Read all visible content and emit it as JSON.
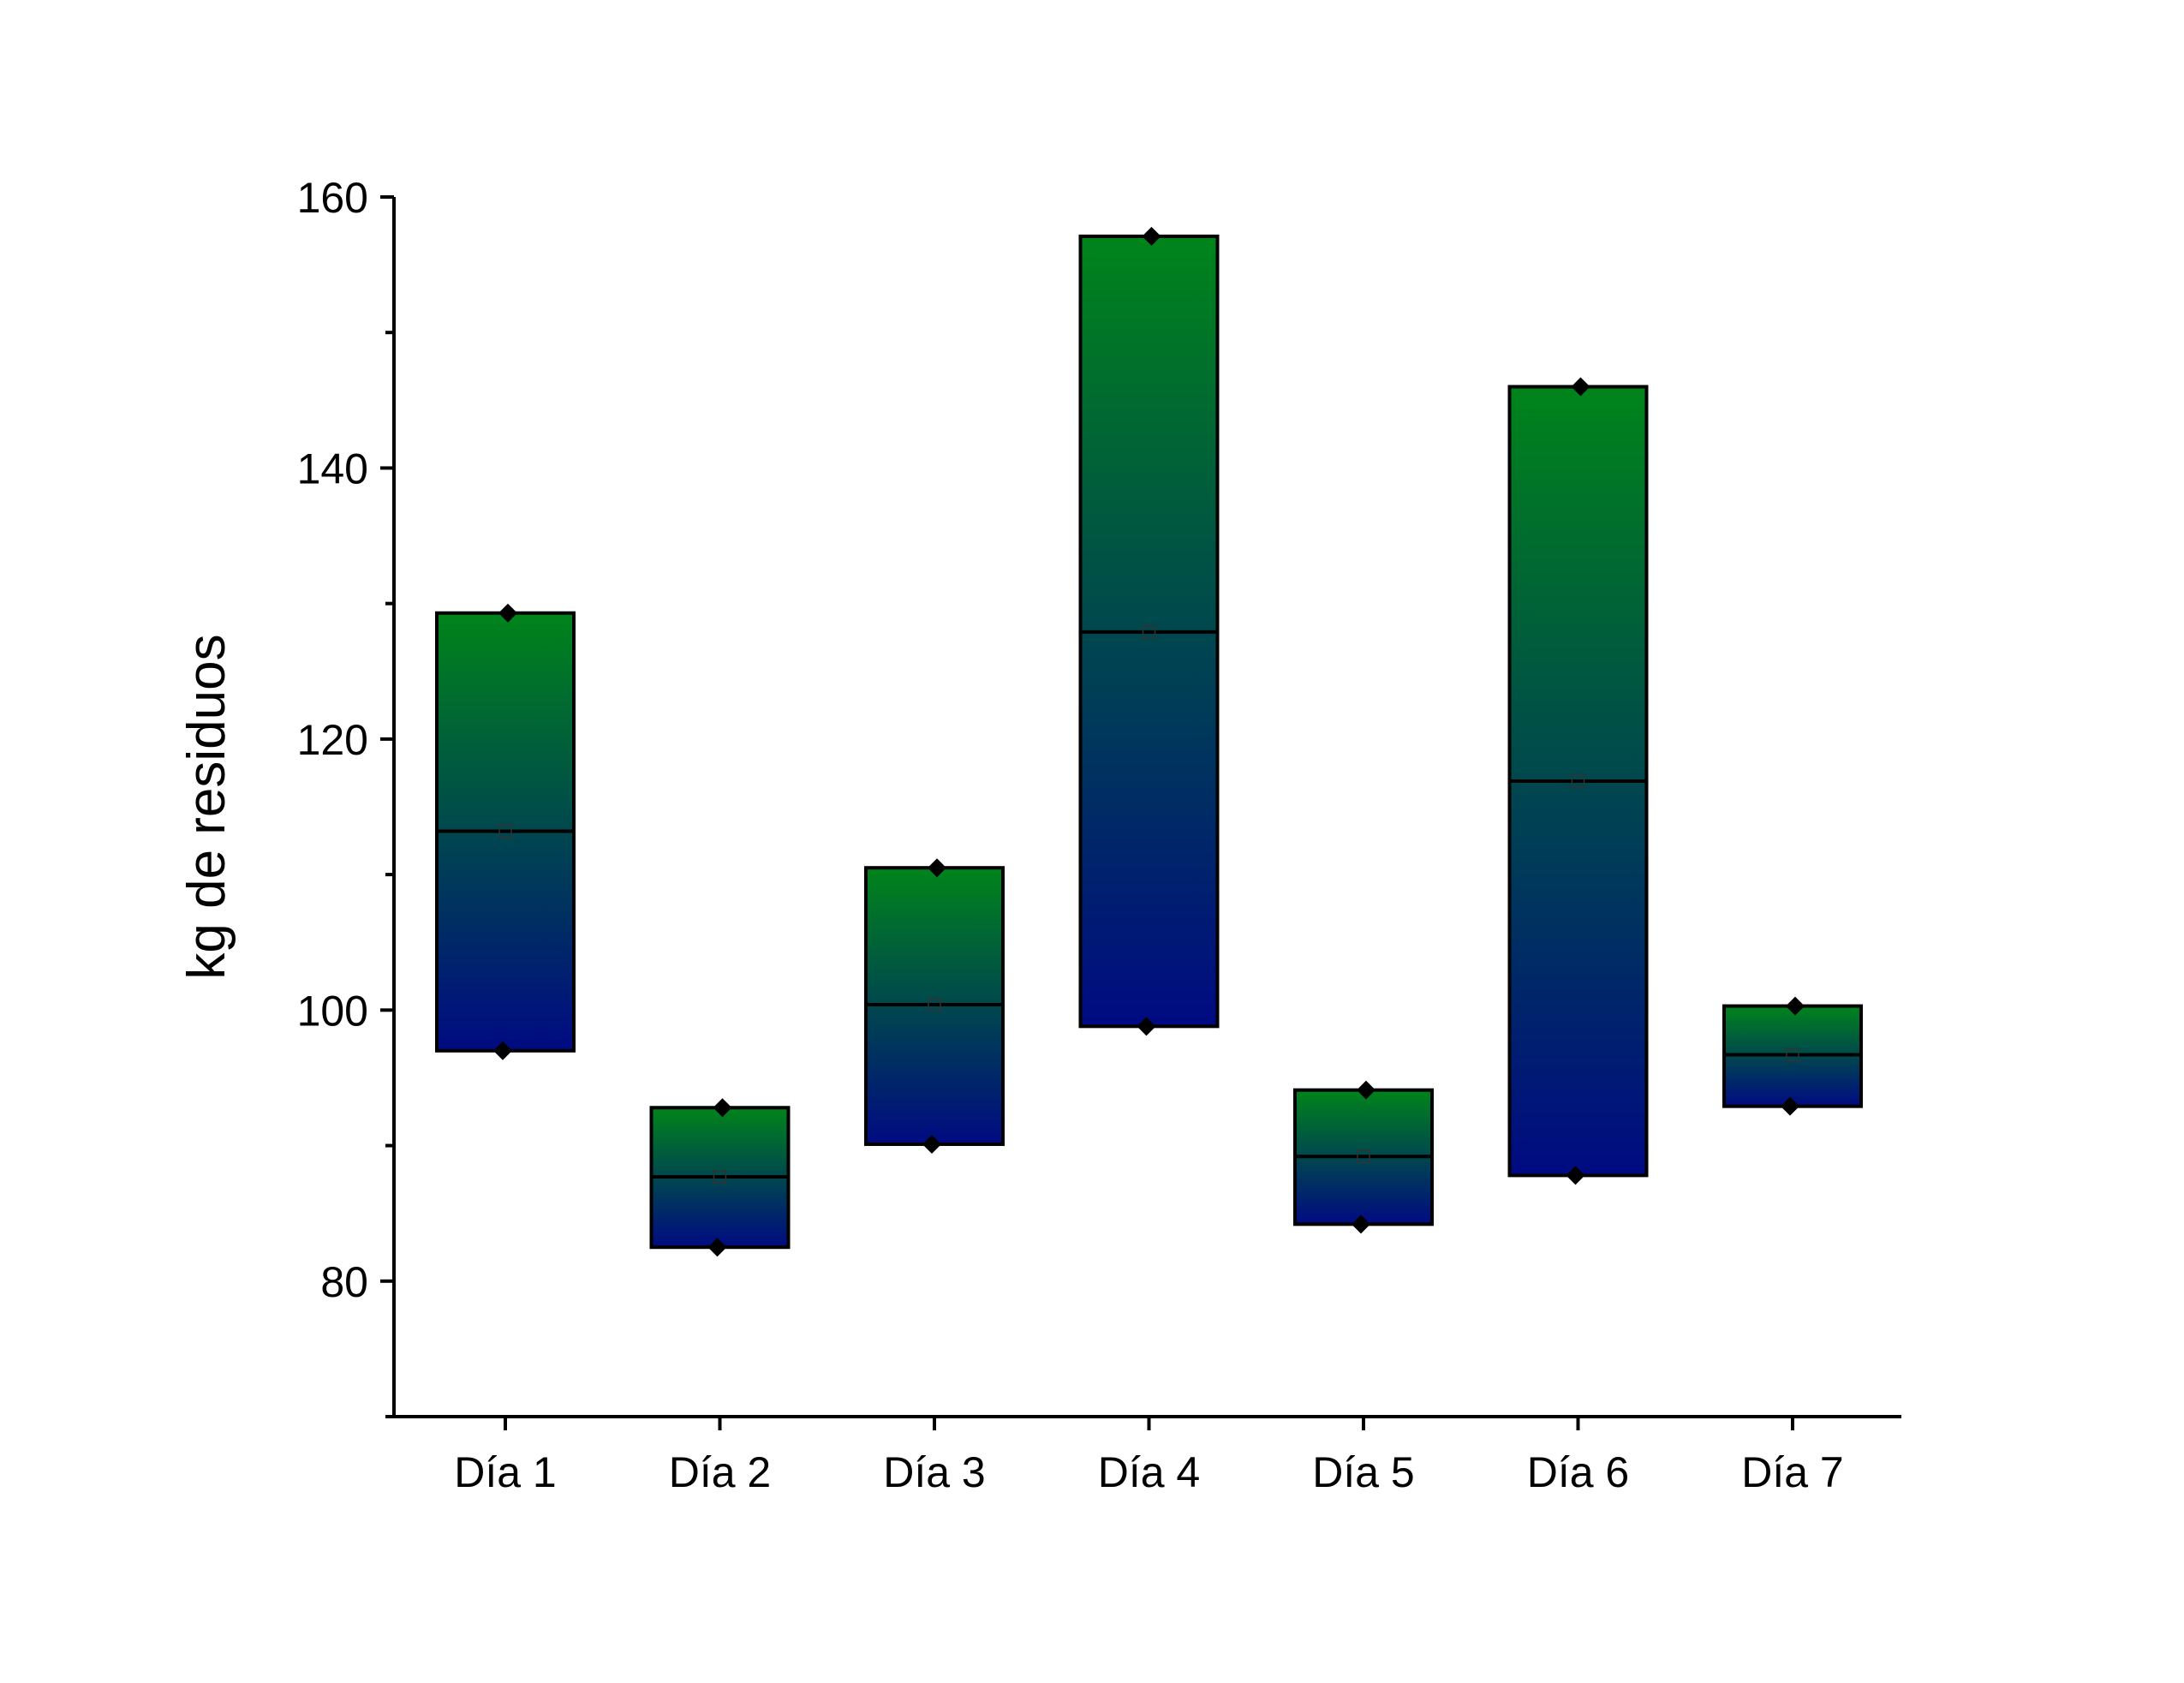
{
  "chart_data": {
    "type": "box",
    "title": "",
    "xlabel": "",
    "ylabel": "kg de residuos",
    "ylim": [
      70,
      160
    ],
    "yticks_major": [
      80,
      100,
      120,
      140,
      160
    ],
    "yticks_minor": [
      70,
      90,
      110,
      130,
      150
    ],
    "categories": [
      "Día 1",
      "Día 2",
      "Día 3",
      "Día 4",
      "Día 5",
      "Día 6",
      "Día 7"
    ],
    "boxes": [
      {
        "category": "Día 1",
        "min": 97.0,
        "max": 129.3,
        "median": 113.2,
        "mean": 113.2
      },
      {
        "category": "Día 2",
        "min": 82.5,
        "max": 92.8,
        "median": 87.7,
        "mean": 87.7
      },
      {
        "category": "Día 3",
        "min": 90.1,
        "max": 110.5,
        "median": 100.4,
        "mean": 100.4
      },
      {
        "category": "Día 4",
        "min": 98.8,
        "max": 157.1,
        "median": 127.9,
        "mean": 127.9
      },
      {
        "category": "Día 5",
        "min": 84.2,
        "max": 94.1,
        "median": 89.2,
        "mean": 89.2
      },
      {
        "category": "Día 6",
        "min": 87.8,
        "max": 146.0,
        "median": 116.9,
        "mean": 116.9
      },
      {
        "category": "Día 7",
        "min": 92.9,
        "max": 100.3,
        "median": 96.7,
        "mean": 96.7
      }
    ],
    "fill_gradient": {
      "top": "#00841a",
      "bottom": "#000a82"
    },
    "grid": false,
    "legend": "none"
  }
}
